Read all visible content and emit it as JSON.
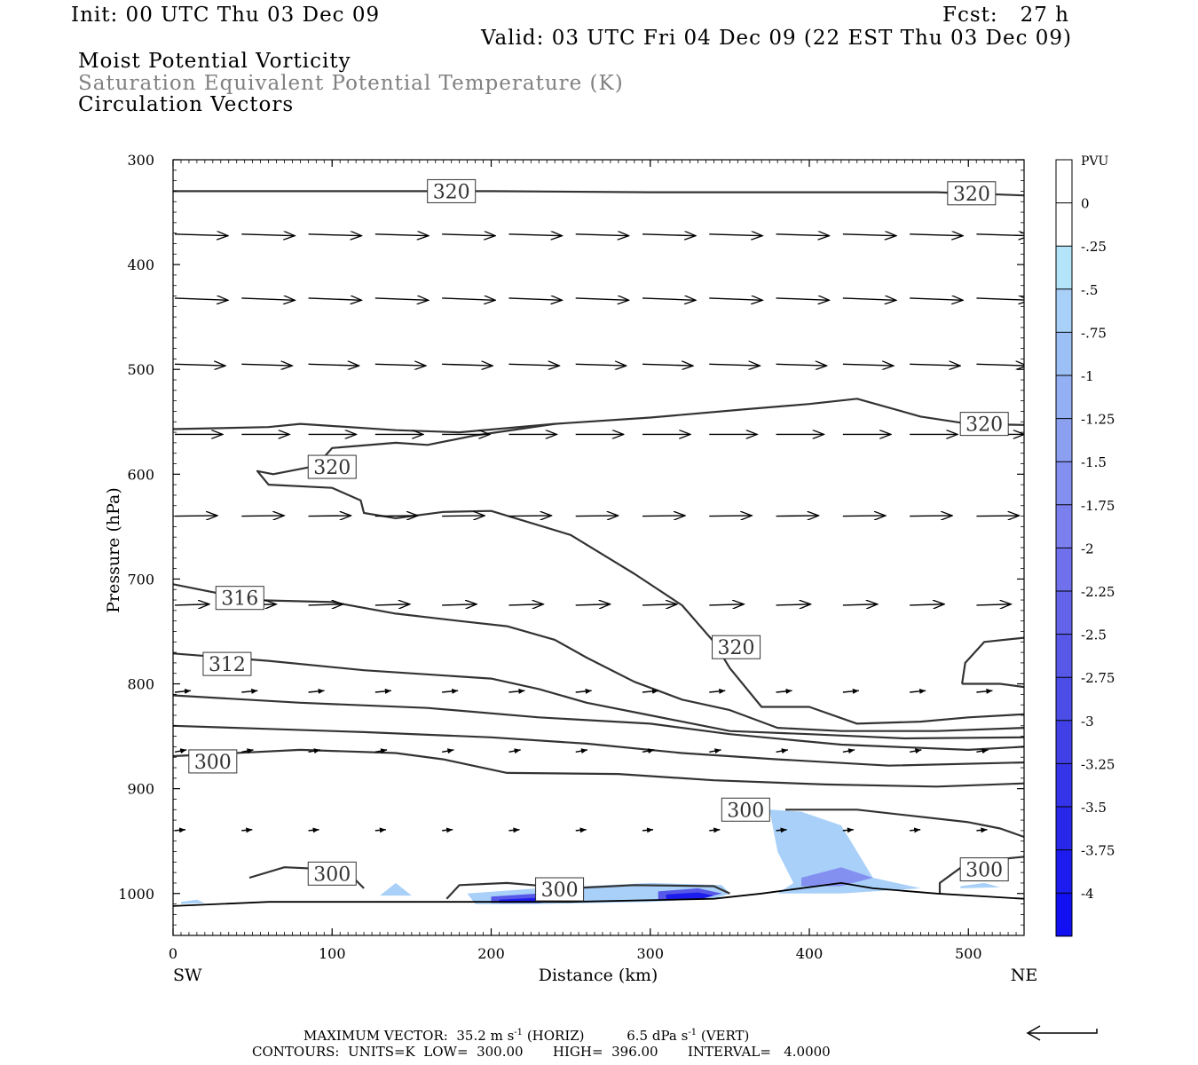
{
  "header": {
    "init": "Init: 00 UTC Thu 03 Dec 09",
    "fcst": "Fcst:   27 h",
    "valid": "Valid: 03 UTC Fri 04 Dec 09 (22 EST Thu 03 Dec 09)",
    "field1": "Moist Potential Vorticity",
    "field2": "Saturation Equivalent Potential Temperature (K)",
    "field3": "Circulation Vectors"
  },
  "footer": {
    "max_vector_label": "MAXIMUM VECTOR:",
    "max_vector_horiz_value": "35.2",
    "max_vector_horiz_units": "m s",
    "max_vector_horiz_tag": "(HORIZ)",
    "max_vector_vert_value": "6.5",
    "max_vector_vert_units": "dPa s",
    "max_vector_vert_tag": "(VERT)",
    "exponent": "-1",
    "contours_line": "CONTOURS:  UNITS=K  LOW=  300.00       HIGH=  396.00       INTERVAL=   4.0000"
  },
  "chart_data": {
    "type": "cross-section",
    "xlabel": "Distance (km)",
    "ylabel": "Pressure (hPa)",
    "x_end_labels": {
      "left": "SW",
      "right": "NE"
    },
    "xlim": [
      0,
      535
    ],
    "ylim": [
      300,
      1040
    ],
    "xticks": [
      0,
      100,
      200,
      300,
      400,
      500
    ],
    "yticks": [
      300,
      400,
      500,
      600,
      700,
      800,
      900,
      1000
    ],
    "colorbar": {
      "title": "PVU",
      "levels": [
        "0",
        "-.25",
        "-.5",
        "-.75",
        "-1",
        "-1.25",
        "-1.5",
        "-1.75",
        "-2",
        "-2.25",
        "-2.5",
        "-2.75",
        "-3",
        "-3.25",
        "-3.5",
        "-3.75",
        "-4"
      ],
      "colors": [
        "#ffffff",
        "#ffffff",
        "#b4e4fa",
        "#a8d0f8",
        "#9cc0f6",
        "#94b0f4",
        "#8ca0f2",
        "#8490f0",
        "#7c80ee",
        "#7070ec",
        "#6464ea",
        "#5858e8",
        "#4c4ce6",
        "#4040e6",
        "#3434e8",
        "#2828ea",
        "#1c1cee",
        "#1010f2"
      ]
    },
    "theta_contour_labels": [
      {
        "value": "320",
        "x": 175,
        "p": 330
      },
      {
        "value": "320",
        "x": 502,
        "p": 332
      },
      {
        "value": "320",
        "x": 510,
        "p": 552
      },
      {
        "value": "320",
        "x": 100,
        "p": 593
      },
      {
        "value": "316",
        "x": 42,
        "p": 718
      },
      {
        "value": "312",
        "x": 34,
        "p": 781
      },
      {
        "value": "320",
        "x": 354,
        "p": 765
      },
      {
        "value": "300",
        "x": 25,
        "p": 874
      },
      {
        "value": "300",
        "x": 360,
        "p": 920
      },
      {
        "value": "300",
        "x": 100,
        "p": 981
      },
      {
        "value": "300",
        "x": 243,
        "p": 996
      },
      {
        "value": "300",
        "x": 510,
        "p": 977
      }
    ],
    "theta_contours": [
      {
        "level": 320,
        "pts": [
          [
            0,
            330
          ],
          [
            100,
            330
          ],
          [
            200,
            330
          ],
          [
            300,
            331
          ],
          [
            400,
            331
          ],
          [
            480,
            331
          ],
          [
            535,
            334
          ]
        ]
      },
      {
        "level": 320,
        "pts": [
          [
            0,
            557
          ],
          [
            60,
            555
          ],
          [
            80,
            552
          ],
          [
            140,
            558
          ],
          [
            180,
            560
          ],
          [
            240,
            552
          ],
          [
            300,
            546
          ],
          [
            360,
            538
          ],
          [
            400,
            533
          ],
          [
            430,
            528
          ],
          [
            470,
            545
          ],
          [
            500,
            552
          ],
          [
            535,
            553
          ]
        ]
      },
      {
        "level": 320,
        "pts": [
          [
            240,
            552
          ],
          [
            190,
            563
          ],
          [
            160,
            572
          ],
          [
            140,
            570
          ],
          [
            100,
            575
          ],
          [
            90,
            592
          ],
          [
            63,
            600
          ],
          [
            53,
            597
          ],
          [
            60,
            610
          ],
          [
            100,
            613
          ],
          [
            118,
            625
          ],
          [
            120,
            637
          ],
          [
            140,
            642
          ],
          [
            170,
            636
          ],
          [
            200,
            635
          ],
          [
            250,
            658
          ],
          [
            290,
            695
          ],
          [
            320,
            725
          ],
          [
            340,
            760
          ],
          [
            350,
            785
          ],
          [
            370,
            822
          ],
          [
            400,
            822
          ],
          [
            430,
            838
          ],
          [
            470,
            836
          ],
          [
            500,
            832
          ],
          [
            535,
            829
          ]
        ]
      },
      {
        "level": 316,
        "pts": [
          [
            0,
            705
          ],
          [
            50,
            720
          ],
          [
            100,
            722
          ],
          [
            140,
            733
          ],
          [
            180,
            740
          ],
          [
            210,
            745
          ],
          [
            240,
            758
          ],
          [
            260,
            775
          ],
          [
            290,
            798
          ],
          [
            320,
            815
          ],
          [
            350,
            825
          ],
          [
            380,
            842
          ],
          [
            420,
            845
          ],
          [
            480,
            845
          ],
          [
            535,
            842
          ]
        ]
      },
      {
        "level": 312,
        "pts": [
          [
            0,
            771
          ],
          [
            60,
            778
          ],
          [
            120,
            787
          ],
          [
            200,
            795
          ],
          [
            230,
            805
          ],
          [
            260,
            818
          ],
          [
            300,
            830
          ],
          [
            350,
            845
          ],
          [
            400,
            848
          ],
          [
            460,
            852
          ],
          [
            535,
            851
          ]
        ]
      },
      {
        "level": 308,
        "pts": [
          [
            0,
            811
          ],
          [
            80,
            818
          ],
          [
            160,
            823
          ],
          [
            230,
            832
          ],
          [
            300,
            838
          ],
          [
            350,
            848
          ],
          [
            420,
            858
          ],
          [
            500,
            863
          ],
          [
            535,
            860
          ]
        ]
      },
      {
        "level": 304,
        "pts": [
          [
            0,
            840
          ],
          [
            60,
            843
          ],
          [
            120,
            846
          ],
          [
            200,
            851
          ],
          [
            260,
            857
          ],
          [
            320,
            866
          ],
          [
            380,
            872
          ],
          [
            450,
            878
          ],
          [
            535,
            875
          ]
        ]
      },
      {
        "level": 300,
        "pts": [
          [
            0,
            869
          ],
          [
            80,
            863
          ],
          [
            140,
            866
          ],
          [
            170,
            872
          ],
          [
            210,
            885
          ],
          [
            280,
            886
          ],
          [
            340,
            892
          ],
          [
            410,
            896
          ],
          [
            480,
            898
          ],
          [
            535,
            895
          ]
        ]
      },
      {
        "level": 300,
        "pts": [
          [
            385,
            920
          ],
          [
            430,
            920
          ],
          [
            500,
            932
          ],
          [
            520,
            938
          ],
          [
            535,
            946
          ]
        ]
      },
      {
        "level": 300,
        "pts": [
          [
            48,
            985
          ],
          [
            70,
            975
          ],
          [
            100,
            977
          ],
          [
            110,
            980
          ],
          [
            120,
            995
          ]
        ]
      },
      {
        "level": 300,
        "pts": [
          [
            172,
            1005
          ],
          [
            180,
            992
          ],
          [
            210,
            990
          ],
          [
            250,
            995
          ],
          [
            290,
            992
          ],
          [
            340,
            993
          ],
          [
            350,
            1000
          ]
        ]
      },
      {
        "level": 300,
        "pts": [
          [
            482,
            1000
          ],
          [
            482,
            990
          ],
          [
            500,
            970
          ],
          [
            535,
            965
          ]
        ]
      },
      {
        "level": 300,
        "pts": [
          [
            496,
            800
          ],
          [
            498,
            780
          ],
          [
            510,
            760
          ],
          [
            535,
            756
          ],
          [
            535,
            755
          ]
        ]
      },
      {
        "level": 300,
        "pts": [
          [
            496,
            800
          ],
          [
            520,
            800
          ],
          [
            535,
            803
          ]
        ]
      }
    ],
    "pv_shading": [
      {
        "pvu": -0.5,
        "pts": [
          [
            375,
            920
          ],
          [
            395,
            922
          ],
          [
            420,
            935
          ],
          [
            430,
            960
          ],
          [
            440,
            985
          ],
          [
            470,
            995
          ],
          [
            420,
            1000
          ],
          [
            380,
            1000
          ],
          [
            390,
            990
          ],
          [
            380,
            960
          ],
          [
            375,
            920
          ]
        ]
      },
      {
        "pvu": -1.5,
        "pts": [
          [
            395,
            985
          ],
          [
            420,
            975
          ],
          [
            440,
            985
          ],
          [
            420,
            993
          ],
          [
            395,
            993
          ]
        ]
      },
      {
        "pvu": -0.5,
        "pts": [
          [
            185,
            1000
          ],
          [
            230,
            995
          ],
          [
            300,
            990
          ],
          [
            345,
            992
          ],
          [
            350,
            1000
          ],
          [
            340,
            1005
          ],
          [
            300,
            1008
          ],
          [
            230,
            1010
          ],
          [
            190,
            1010
          ]
        ]
      },
      {
        "pvu": -2.5,
        "pts": [
          [
            200,
            1003
          ],
          [
            230,
            1000
          ],
          [
            250,
            1004
          ],
          [
            230,
            1009
          ],
          [
            200,
            1009
          ]
        ]
      },
      {
        "pvu": -3.75,
        "pts": [
          [
            205,
            1006
          ],
          [
            230,
            1004
          ],
          [
            245,
            1007
          ],
          [
            230,
            1009
          ],
          [
            205,
            1009
          ]
        ]
      },
      {
        "pvu": -2.5,
        "pts": [
          [
            305,
            998
          ],
          [
            330,
            995
          ],
          [
            345,
            1000
          ],
          [
            330,
            1006
          ],
          [
            305,
            1006
          ]
        ]
      },
      {
        "pvu": -3.75,
        "pts": [
          [
            310,
            1001
          ],
          [
            330,
            999
          ],
          [
            340,
            1002
          ],
          [
            330,
            1006
          ],
          [
            310,
            1006
          ]
        ]
      },
      {
        "pvu": -0.5,
        "pts": [
          [
            130,
            1002
          ],
          [
            140,
            990
          ],
          [
            150,
            1002
          ]
        ]
      },
      {
        "pvu": -0.5,
        "pts": [
          [
            5,
            1008
          ],
          [
            15,
            1006
          ],
          [
            20,
            1009
          ],
          [
            5,
            1010
          ]
        ]
      },
      {
        "pvu": -0.5,
        "pts": [
          [
            495,
            993
          ],
          [
            510,
            990
          ],
          [
            520,
            994
          ],
          [
            495,
            995
          ]
        ]
      }
    ],
    "terrain": [
      [
        0,
        1012
      ],
      [
        60,
        1008
      ],
      [
        150,
        1008
      ],
      [
        250,
        1008
      ],
      [
        340,
        1005
      ],
      [
        370,
        1000
      ],
      [
        420,
        990
      ],
      [
        440,
        995
      ],
      [
        480,
        1000
      ],
      [
        535,
        1005
      ]
    ],
    "vector_rows": [
      {
        "p": 371,
        "u": 1.0,
        "w": -0.03
      },
      {
        "p": 432,
        "u": 1.0,
        "w": -0.04
      },
      {
        "p": 495,
        "u": 0.95,
        "w": -0.03
      },
      {
        "p": 562,
        "u": 0.9,
        "w": 0.0
      },
      {
        "p": 640,
        "u": 0.8,
        "w": 0.01
      },
      {
        "p": 725,
        "u": 0.65,
        "w": 0.02
      },
      {
        "p": 808,
        "u": 0.3,
        "w": 0.03
      },
      {
        "p": 865,
        "u": 0.22,
        "w": 0.04
      },
      {
        "p": 940,
        "u": 0.2,
        "w": 0.02
      }
    ],
    "vector_x": [
      0,
      42,
      84,
      126,
      168,
      210,
      252,
      294,
      336,
      378,
      420,
      462,
      504
    ]
  }
}
